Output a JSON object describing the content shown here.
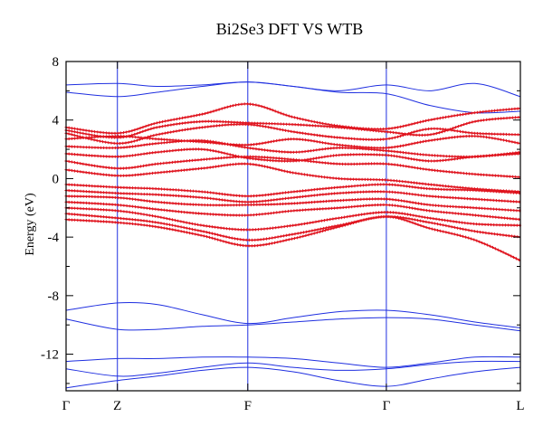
{
  "chart_data": {
    "type": "line",
    "title": "Bi2Se3 DFT VS WTB",
    "xlabel": "",
    "ylabel": "Energy (eV)",
    "ylim": [
      -14.5,
      8
    ],
    "xlim": [
      0,
      1
    ],
    "grid": false,
    "legend": "none",
    "y_ticks": [
      {
        "value": 8,
        "label": "8"
      },
      {
        "value": 4,
        "label": "4"
      },
      {
        "value": 0,
        "label": "0"
      },
      {
        "value": -4,
        "label": "-4"
      },
      {
        "value": -8,
        "label": "-8"
      },
      {
        "value": -12,
        "label": "-12"
      }
    ],
    "y_minor_ticks": [
      6,
      2,
      -2,
      -6,
      -10,
      -14
    ],
    "high_symmetry_points": [
      {
        "label": "Γ",
        "x": 0
      },
      {
        "label": "Z",
        "x": 0.113
      },
      {
        "label": "F",
        "x": 0.4
      },
      {
        "label": "Γ",
        "x": 0.705
      },
      {
        "label": "L",
        "x": 1
      }
    ],
    "colors": {
      "wtb": "#1f2fe0",
      "dft": "#e0141e",
      "axis": "#000000"
    },
    "x": [
      0,
      0.113,
      0.2,
      0.3,
      0.4,
      0.5,
      0.6,
      0.705,
      0.8,
      0.9,
      1
    ],
    "wtb_series": [
      {
        "values": [
          -14.3,
          -13.8,
          -13.5,
          -13.1,
          -12.9,
          -13.2,
          -13.8,
          -14.2,
          -13.7,
          -13.2,
          -12.9
        ]
      },
      {
        "values": [
          -13.0,
          -13.5,
          -13.3,
          -12.9,
          -12.6,
          -12.9,
          -13.1,
          -13.0,
          -12.7,
          -12.5,
          -12.5
        ]
      },
      {
        "values": [
          -12.5,
          -12.3,
          -12.3,
          -12.2,
          -12.2,
          -12.3,
          -12.6,
          -12.9,
          -12.6,
          -12.2,
          -12.2
        ]
      },
      {
        "values": [
          -9.6,
          -10.3,
          -10.3,
          -10.1,
          -10.0,
          -9.8,
          -9.6,
          -9.5,
          -9.6,
          -10.0,
          -10.4
        ]
      },
      {
        "values": [
          -9.0,
          -8.5,
          -8.6,
          -9.3,
          -9.9,
          -9.5,
          -9.1,
          -9.0,
          -9.3,
          -9.8,
          -10.2
        ]
      },
      {
        "values": [
          5.9,
          5.6,
          5.9,
          6.3,
          6.6,
          6.3,
          5.9,
          5.8,
          5.0,
          4.5,
          4.6
        ]
      },
      {
        "values": [
          6.4,
          6.5,
          6.3,
          6.4,
          6.6,
          6.3,
          6.0,
          6.4,
          6.0,
          6.5,
          5.6
        ]
      }
    ],
    "dft_series": [
      {
        "values": [
          3.5,
          3.1,
          3.8,
          4.4,
          5.1,
          4.2,
          3.6,
          3.4,
          4.0,
          4.5,
          4.8
        ]
      },
      {
        "values": [
          3.3,
          2.8,
          3.5,
          3.9,
          3.8,
          3.7,
          3.5,
          3.2,
          3.0,
          3.9,
          4.2
        ]
      },
      {
        "values": [
          3.1,
          2.4,
          3.0,
          3.5,
          3.7,
          3.2,
          2.8,
          2.7,
          3.4,
          3.1,
          3.0
        ]
      },
      {
        "values": [
          2.7,
          2.9,
          2.7,
          2.5,
          2.3,
          2.7,
          2.3,
          2.1,
          2.6,
          2.9,
          2.4
        ]
      },
      {
        "values": [
          2.2,
          2.1,
          2.4,
          2.6,
          2.1,
          1.8,
          2.1,
          1.9,
          1.6,
          1.5,
          1.8
        ]
      },
      {
        "values": [
          1.7,
          1.5,
          1.8,
          2.0,
          1.4,
          1.2,
          1.6,
          1.6,
          1.2,
          1.5,
          1.7
        ]
      },
      {
        "values": [
          1.2,
          0.7,
          1.0,
          1.3,
          1.5,
          1.3,
          1.0,
          1.0,
          0.6,
          0.3,
          0.1
        ]
      },
      {
        "values": [
          0.6,
          0.2,
          0.4,
          0.7,
          1.0,
          0.4,
          0.0,
          -0.1,
          -0.4,
          -0.7,
          -0.9
        ]
      },
      {
        "values": [
          -0.4,
          -0.6,
          -0.7,
          -0.9,
          -1.2,
          -0.9,
          -0.6,
          -0.4,
          -0.7,
          -0.8,
          -1.0
        ]
      },
      {
        "values": [
          -0.8,
          -1.0,
          -1.1,
          -1.3,
          -1.6,
          -1.3,
          -1.0,
          -0.9,
          -1.2,
          -1.4,
          -1.6
        ]
      },
      {
        "values": [
          -1.2,
          -1.3,
          -1.6,
          -1.8,
          -1.8,
          -1.7,
          -1.5,
          -1.4,
          -1.8,
          -2.0,
          -2.2
        ]
      },
      {
        "values": [
          -1.6,
          -1.8,
          -2.1,
          -2.4,
          -2.5,
          -2.2,
          -2.0,
          -1.8,
          -2.2,
          -2.5,
          -2.8
        ]
      },
      {
        "values": [
          -2.0,
          -2.2,
          -2.6,
          -3.2,
          -3.5,
          -3.2,
          -2.7,
          -2.3,
          -2.7,
          -3.1,
          -3.2
        ]
      },
      {
        "values": [
          -2.4,
          -2.7,
          -3.0,
          -3.6,
          -4.2,
          -3.8,
          -3.2,
          -2.6,
          -3.0,
          -3.6,
          -4.0
        ]
      },
      {
        "values": [
          -2.8,
          -3.0,
          -3.3,
          -3.9,
          -4.6,
          -4.1,
          -3.3,
          -2.6,
          -3.4,
          -4.2,
          -5.6
        ]
      }
    ]
  }
}
